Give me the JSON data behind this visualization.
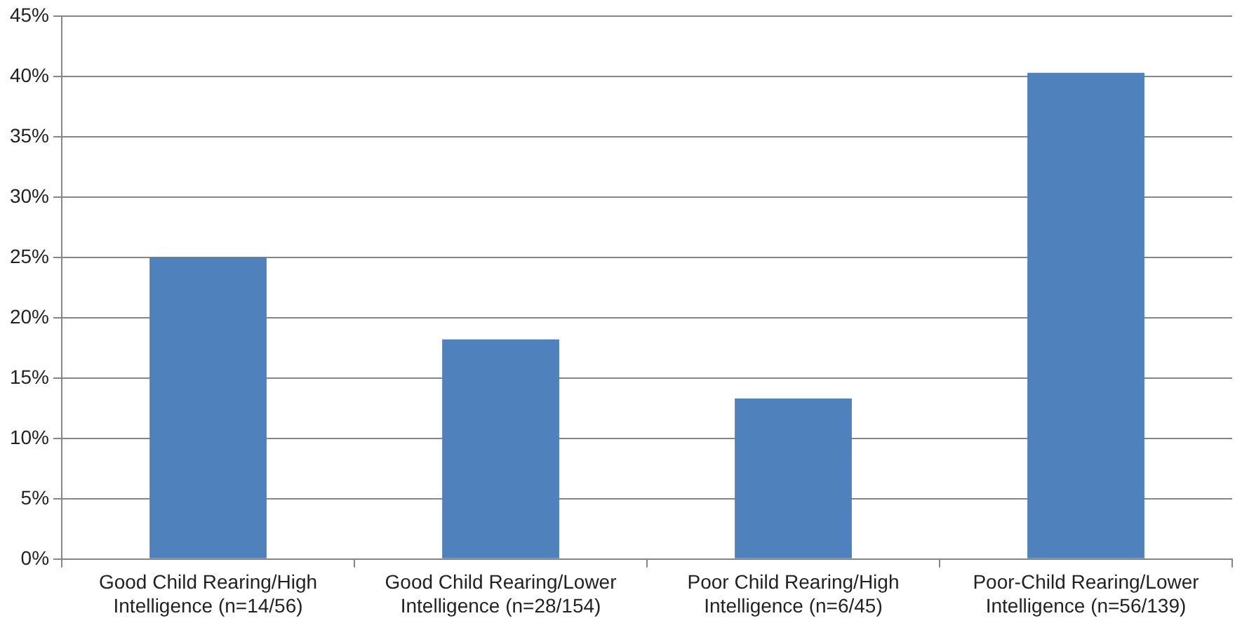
{
  "chart_data": {
    "type": "bar",
    "categories": [
      "Good Child Rearing/High Intelligence (n=14/56)",
      "Good Child Rearing/Lower Intelligence (n=28/154)",
      "Poor Child Rearing/High Intelligence (n=6/45)",
      "Poor-Child Rearing/Lower Intelligence (n=56/139)"
    ],
    "values": [
      25,
      18.2,
      13.3,
      40.3
    ],
    "color": "#4f81bd",
    "ylim": [
      0,
      45
    ],
    "yticks": [
      {
        "value": 0,
        "label": "0%"
      },
      {
        "value": 5,
        "label": "5%"
      },
      {
        "value": 10,
        "label": "10%"
      },
      {
        "value": 15,
        "label": "15%"
      },
      {
        "value": 20,
        "label": "20%"
      },
      {
        "value": 25,
        "label": "25%"
      },
      {
        "value": 30,
        "label": "30%"
      },
      {
        "value": 35,
        "label": "35%"
      },
      {
        "value": 40,
        "label": "40%"
      },
      {
        "value": 45,
        "label": "45%"
      }
    ],
    "grid": "y"
  }
}
